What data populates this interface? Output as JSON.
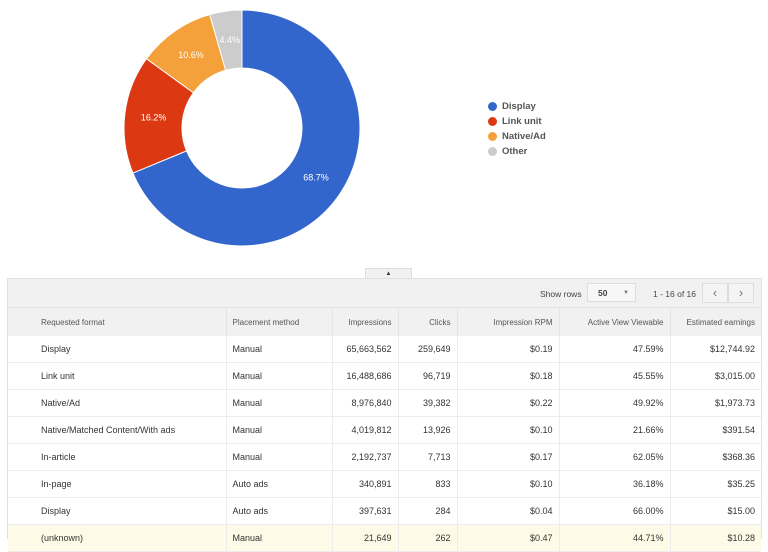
{
  "chart_data": {
    "type": "pie",
    "variant": "donut",
    "categories": [
      "Display",
      "Link unit",
      "Native/Ad",
      "Other"
    ],
    "values": [
      68.7,
      16.2,
      10.6,
      4.4
    ],
    "labels": [
      "68.7%",
      "16.2%",
      "10.6%",
      "4.4%"
    ],
    "colors": [
      "#3366cc",
      "#dc3912",
      "#f4a03b",
      "#cccccc"
    ],
    "legend_position": "right"
  },
  "pager": {
    "show_rows_label": "Show rows",
    "rows_value": "50",
    "range": "1 - 16 of 16",
    "prev": "‹",
    "next": "›"
  },
  "collapse_handle": "▲",
  "table": {
    "headers": [
      "Requested format",
      "Placement method",
      "Impressions",
      "Clicks",
      "Impression RPM",
      "Active View Viewable",
      "Estimated earnings"
    ],
    "rows": [
      [
        "Display",
        "Manual",
        "65,663,562",
        "259,649",
        "$0.19",
        "47.59%",
        "$12,744.92"
      ],
      [
        "Link unit",
        "Manual",
        "16,488,686",
        "96,719",
        "$0.18",
        "45.55%",
        "$3,015.00"
      ],
      [
        "Native/Ad",
        "Manual",
        "8,976,840",
        "39,382",
        "$0.22",
        "49.92%",
        "$1,973.73"
      ],
      [
        "Native/Matched Content/With ads",
        "Manual",
        "4,019,812",
        "13,926",
        "$0.10",
        "21.66%",
        "$391.54"
      ],
      [
        "In-article",
        "Manual",
        "2,192,737",
        "7,713",
        "$0.17",
        "62.05%",
        "$368.36"
      ],
      [
        "In-page",
        "Auto ads",
        "340,891",
        "833",
        "$0.10",
        "36.18%",
        "$35.25"
      ],
      [
        "Display",
        "Auto ads",
        "397,631",
        "284",
        "$0.04",
        "66.00%",
        "$15.00"
      ],
      [
        "(unknown)",
        "Manual",
        "21,649",
        "262",
        "$0.47",
        "44.71%",
        "$10.28"
      ]
    ]
  }
}
